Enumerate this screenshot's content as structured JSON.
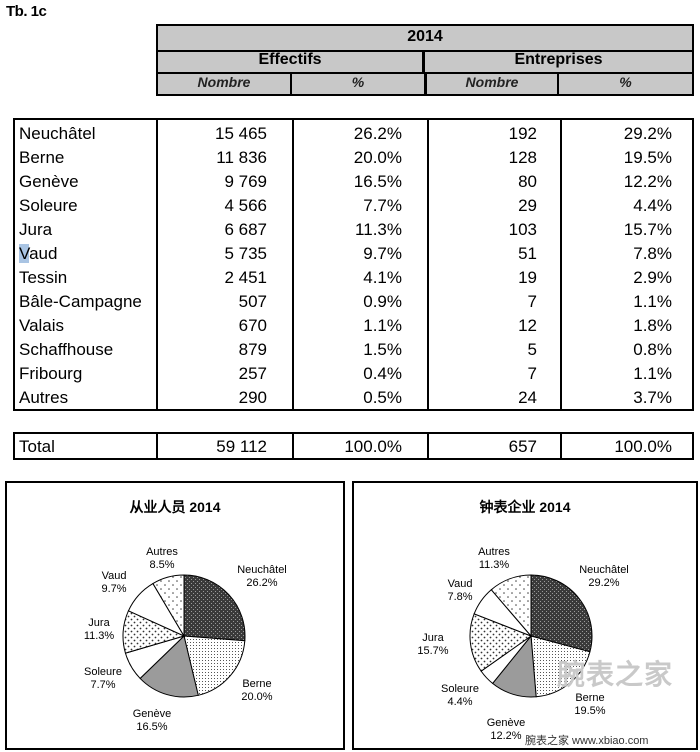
{
  "figure_label": "Tb. 1c",
  "header": {
    "year": "2014",
    "group_effectifs": "Effectifs",
    "group_entreprises": "Entreprises",
    "sub_nombre_1": "Nombre",
    "sub_pct_1": "%",
    "sub_nombre_2": "Nombre",
    "sub_pct_2": "%"
  },
  "rows": [
    {
      "name": "Neuchâtel",
      "eff_num": "15 465",
      "eff_pct": "26.2%",
      "ent_num": "192",
      "ent_pct": "29.2%"
    },
    {
      "name": "Berne",
      "eff_num": "11 836",
      "eff_pct": "20.0%",
      "ent_num": "128",
      "ent_pct": "19.5%"
    },
    {
      "name": "Genève",
      "eff_num": "9 769",
      "eff_pct": "16.5%",
      "ent_num": "80",
      "ent_pct": "12.2%"
    },
    {
      "name": "Soleure",
      "eff_num": "4 566",
      "eff_pct": "7.7%",
      "ent_num": "29",
      "ent_pct": "4.4%"
    },
    {
      "name": "Jura",
      "eff_num": "6 687",
      "eff_pct": "11.3%",
      "ent_num": "103",
      "ent_pct": "15.7%"
    },
    {
      "name": "Vaud",
      "eff_num": "5 735",
      "eff_pct": "9.7%",
      "ent_num": "51",
      "ent_pct": "7.8%"
    },
    {
      "name": "Tessin",
      "eff_num": "2 451",
      "eff_pct": "4.1%",
      "ent_num": "19",
      "ent_pct": "2.9%"
    },
    {
      "name": "Bâle-Campagne",
      "eff_num": "507",
      "eff_pct": "0.9%",
      "ent_num": "7",
      "ent_pct": "1.1%"
    },
    {
      "name": "Valais",
      "eff_num": "670",
      "eff_pct": "1.1%",
      "ent_num": "12",
      "ent_pct": "1.8%"
    },
    {
      "name": "Schaffhouse",
      "eff_num": "879",
      "eff_pct": "1.5%",
      "ent_num": "5",
      "ent_pct": "0.8%"
    },
    {
      "name": "Fribourg",
      "eff_num": "257",
      "eff_pct": "0.4%",
      "ent_num": "7",
      "ent_pct": "1.1%"
    },
    {
      "name": "Autres",
      "eff_num": "290",
      "eff_pct": "0.5%",
      "ent_num": "24",
      "ent_pct": "3.7%"
    }
  ],
  "total": {
    "name": "Total",
    "eff_num": "59 112",
    "eff_pct": "100.0%",
    "ent_num": "657",
    "ent_pct": "100.0%"
  },
  "chart_data": [
    {
      "type": "pie",
      "title": "从业人员 2014",
      "slices": [
        {
          "label": "Neuchâtel",
          "value": 26.2,
          "display": "26.2%",
          "fill": "dark"
        },
        {
          "label": "Berne",
          "value": 20.0,
          "display": "20.0%",
          "fill": "dots-fine"
        },
        {
          "label": "Genève",
          "value": 16.5,
          "display": "16.5%",
          "fill": "grey"
        },
        {
          "label": "Soleure",
          "value": 7.7,
          "display": "7.7%",
          "fill": "white"
        },
        {
          "label": "Jura",
          "value": 11.3,
          "display": "11.3%",
          "fill": "dots-coarse"
        },
        {
          "label": "Vaud",
          "value": 9.7,
          "display": "9.7%",
          "fill": "white"
        },
        {
          "label": "Autres",
          "value": 8.5,
          "display": "8.5%",
          "fill": "dots-sparse"
        }
      ]
    },
    {
      "type": "pie",
      "title": "钟表企业 2014",
      "slices": [
        {
          "label": "Neuchâtel",
          "value": 29.2,
          "display": "29.2%",
          "fill": "dark"
        },
        {
          "label": "Berne",
          "value": 19.5,
          "display": "19.5%",
          "fill": "dots-fine"
        },
        {
          "label": "Genève",
          "value": 12.2,
          "display": "12.2%",
          "fill": "grey"
        },
        {
          "label": "Soleure",
          "value": 4.4,
          "display": "4.4%",
          "fill": "white"
        },
        {
          "label": "Jura",
          "value": 15.7,
          "display": "15.7%",
          "fill": "dots-coarse"
        },
        {
          "label": "Vaud",
          "value": 7.8,
          "display": "7.8%",
          "fill": "white"
        },
        {
          "label": "Autres",
          "value": 11.3,
          "display": "11.3%",
          "fill": "dots-sparse"
        }
      ]
    }
  ],
  "watermark": "腕表之家",
  "footer_site": "腕表之家 www.xbiao.com"
}
